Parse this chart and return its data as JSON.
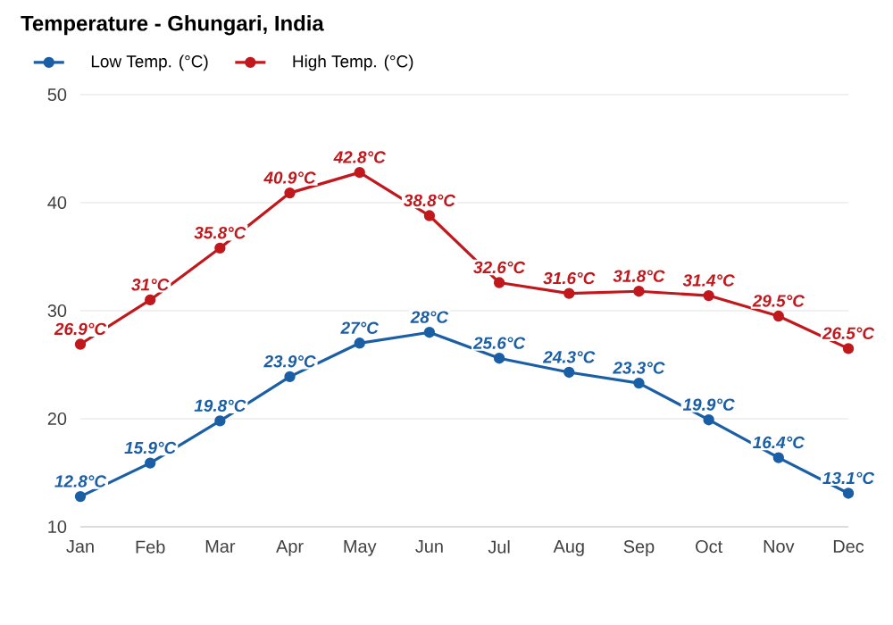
{
  "chart_data": {
    "type": "line",
    "title": "Temperature - Ghungari, India",
    "categories": [
      "Jan",
      "Feb",
      "Mar",
      "Apr",
      "May",
      "Jun",
      "Jul",
      "Aug",
      "Sep",
      "Oct",
      "Nov",
      "Dec"
    ],
    "series": [
      {
        "name": "Low Temp. (°C)",
        "color": "#1a5fa6",
        "values": [
          12.8,
          15.9,
          19.8,
          23.9,
          27,
          28,
          25.6,
          24.3,
          23.3,
          19.9,
          16.4,
          13.1
        ],
        "value_labels": [
          "12.8°C",
          "15.9°C",
          "19.8°C",
          "23.9°C",
          "27°C",
          "28°C",
          "25.6°C",
          "24.3°C",
          "23.3°C",
          "19.9°C",
          "16.4°C",
          "13.1°C"
        ]
      },
      {
        "name": "High Temp. (°C)",
        "color": "#c0181c",
        "values": [
          26.9,
          31,
          35.8,
          40.9,
          42.8,
          38.8,
          32.6,
          31.6,
          31.8,
          31.4,
          29.5,
          26.5
        ],
        "value_labels": [
          "26.9°C",
          "31°C",
          "35.8°C",
          "40.9°C",
          "42.8°C",
          "38.8°C",
          "32.6°C",
          "31.6°C",
          "31.8°C",
          "31.4°C",
          "29.5°C",
          "26.5°C"
        ]
      }
    ],
    "ylim": [
      10,
      50
    ],
    "yticks": [
      10,
      20,
      30,
      40,
      50
    ],
    "grid": "y",
    "legend": "top left",
    "marker": "circle",
    "line_style": "solid"
  }
}
